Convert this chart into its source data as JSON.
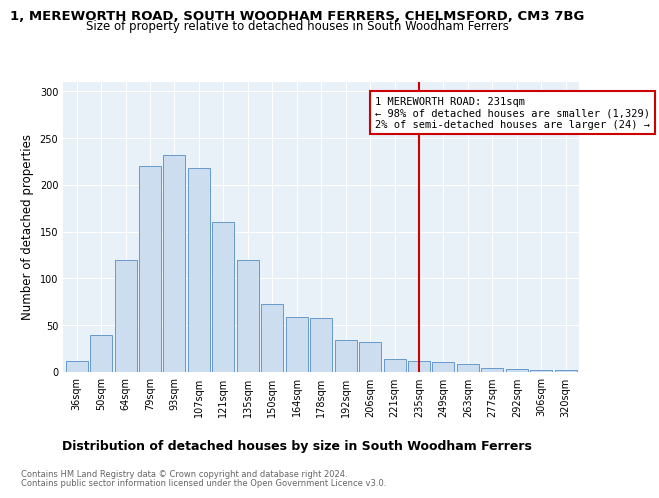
{
  "title": "1, MEREWORTH ROAD, SOUTH WOODHAM FERRERS, CHELMSFORD, CM3 7BG",
  "subtitle": "Size of property relative to detached houses in South Woodham Ferrers",
  "xlabel": "Distribution of detached houses by size in South Woodham Ferrers",
  "ylabel": "Number of detached properties",
  "footnote1": "Contains HM Land Registry data © Crown copyright and database right 2024.",
  "footnote2": "Contains public sector information licensed under the Open Government Licence v3.0.",
  "categories": [
    "36sqm",
    "50sqm",
    "64sqm",
    "79sqm",
    "93sqm",
    "107sqm",
    "121sqm",
    "135sqm",
    "150sqm",
    "164sqm",
    "178sqm",
    "192sqm",
    "206sqm",
    "221sqm",
    "235sqm",
    "249sqm",
    "263sqm",
    "277sqm",
    "292sqm",
    "306sqm",
    "320sqm"
  ],
  "values": [
    12,
    40,
    120,
    220,
    232,
    218,
    160,
    120,
    73,
    59,
    58,
    34,
    32,
    14,
    12,
    11,
    9,
    4,
    3,
    2,
    2
  ],
  "bar_color": "#ccddf0",
  "bar_edge_color": "#6699cc",
  "vline_x": 14,
  "vline_color": "#cc0000",
  "annotation_text": "1 MEREWORTH ROAD: 231sqm\n← 98% of detached houses are smaller (1,329)\n2% of semi-detached houses are larger (24) →",
  "annotation_box_color": "#cc0000",
  "ylim": [
    0,
    310
  ],
  "yticks": [
    0,
    50,
    100,
    150,
    200,
    250,
    300
  ],
  "bg_color": "#e8f0f8",
  "title_fontsize": 9.5,
  "subtitle_fontsize": 8.5,
  "xlabel_fontsize": 9,
  "ylabel_fontsize": 8.5,
  "tick_fontsize": 7,
  "footnote_fontsize": 6,
  "annot_fontsize": 7.5
}
